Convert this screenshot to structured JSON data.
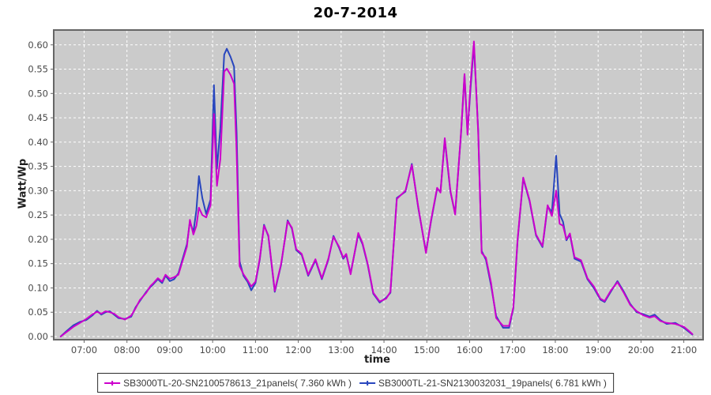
{
  "title": "20-7-2014",
  "axes": {
    "y_label": "Watt/Wp",
    "x_label": "time",
    "y_ticks": [
      "0.00",
      "0.05",
      "0.10",
      "0.15",
      "0.20",
      "0.25",
      "0.30",
      "0.35",
      "0.40",
      "0.45",
      "0.50",
      "0.55",
      "0.60"
    ],
    "x_ticks": [
      "07:00",
      "08:00",
      "09:00",
      "10:00",
      "11:00",
      "12:00",
      "13:00",
      "14:00",
      "15:00",
      "16:00",
      "17:00",
      "18:00",
      "19:00",
      "20:00",
      "21:00"
    ]
  },
  "legend": {
    "items": [
      {
        "label": "SB3000TL-20-SN2100578613_21panels( 7.360 kWh )",
        "color": "#cc00cc"
      },
      {
        "label": "SB3000TL-21-SN2130032031_19panels( 6.781 kWh )",
        "color": "#2846be"
      }
    ]
  },
  "colors": {
    "plot_bg": "#cbcbcb",
    "grid": "#ffffff",
    "frame": "#666666",
    "tick_text": "#4a4a4a",
    "series_magenta": "#cc00cc",
    "series_blue": "#2846be"
  },
  "chart_data": {
    "type": "line",
    "title": "20-7-2014",
    "xlabel": "time",
    "ylabel": "Watt/Wp",
    "x_axis_unit": "hour of day",
    "xlim_hours": [
      6.29,
      21.45
    ],
    "ylim": [
      0,
      0.62
    ],
    "grid": "white dashed gridlines on gray plot background, hourly x-grid, 0.05 y-grid",
    "legend_position": "bottom-center boxed",
    "x_hours": [
      6.45,
      6.6,
      6.75,
      6.9,
      7.05,
      7.2,
      7.3,
      7.4,
      7.5,
      7.6,
      7.7,
      7.8,
      7.95,
      8.1,
      8.2,
      8.3,
      8.45,
      8.55,
      8.62,
      8.72,
      8.82,
      8.9,
      9.0,
      9.1,
      9.2,
      9.3,
      9.4,
      9.47,
      9.55,
      9.62,
      9.68,
      9.76,
      9.85,
      9.95,
      10.03,
      10.1,
      10.18,
      10.27,
      10.33,
      10.42,
      10.5,
      10.56,
      10.63,
      10.72,
      10.82,
      10.9,
      11.0,
      11.1,
      11.2,
      11.3,
      11.45,
      11.6,
      11.75,
      11.85,
      11.95,
      12.08,
      12.23,
      12.4,
      12.55,
      12.7,
      12.82,
      12.95,
      13.05,
      13.12,
      13.22,
      13.4,
      13.5,
      13.62,
      13.75,
      13.9,
      14.05,
      14.15,
      14.3,
      14.5,
      14.65,
      14.8,
      14.98,
      15.1,
      15.24,
      15.32,
      15.42,
      15.55,
      15.66,
      15.8,
      15.88,
      15.95,
      16.02,
      16.1,
      16.2,
      16.28,
      16.38,
      16.5,
      16.62,
      16.78,
      16.92,
      17.02,
      17.12,
      17.25,
      17.4,
      17.55,
      17.7,
      17.82,
      17.92,
      18.02,
      18.1,
      18.18,
      18.26,
      18.34,
      18.45,
      18.6,
      18.75,
      18.9,
      19.05,
      19.15,
      19.3,
      19.45,
      19.6,
      19.75,
      19.9,
      20.05,
      20.2,
      20.32,
      20.45,
      20.6,
      20.8,
      21.0,
      21.1,
      21.2
    ],
    "series": [
      {
        "name": "SB3000TL-20-SN2100578613_21panels( 7.360 kWh )",
        "color": "#cc00cc",
        "energy_kwh": "7.360",
        "values": [
          0.0,
          0.01,
          0.02,
          0.028,
          0.036,
          0.046,
          0.051,
          0.047,
          0.052,
          0.05,
          0.047,
          0.04,
          0.035,
          0.043,
          0.058,
          0.075,
          0.09,
          0.104,
          0.11,
          0.12,
          0.113,
          0.127,
          0.119,
          0.122,
          0.127,
          0.156,
          0.185,
          0.24,
          0.21,
          0.228,
          0.265,
          0.25,
          0.245,
          0.27,
          0.458,
          0.31,
          0.365,
          0.545,
          0.551,
          0.538,
          0.52,
          0.38,
          0.145,
          0.128,
          0.115,
          0.103,
          0.113,
          0.16,
          0.228,
          0.208,
          0.094,
          0.15,
          0.237,
          0.224,
          0.18,
          0.17,
          0.127,
          0.159,
          0.12,
          0.16,
          0.205,
          0.185,
          0.162,
          0.17,
          0.128,
          0.213,
          0.192,
          0.15,
          0.09,
          0.072,
          0.078,
          0.092,
          0.283,
          0.3,
          0.353,
          0.267,
          0.172,
          0.24,
          0.306,
          0.296,
          0.408,
          0.3,
          0.251,
          0.42,
          0.54,
          0.415,
          0.52,
          0.607,
          0.42,
          0.172,
          0.162,
          0.11,
          0.038,
          0.022,
          0.022,
          0.06,
          0.2,
          0.327,
          0.28,
          0.21,
          0.186,
          0.27,
          0.248,
          0.3,
          0.232,
          0.228,
          0.2,
          0.212,
          0.163,
          0.157,
          0.12,
          0.103,
          0.078,
          0.073,
          0.095,
          0.112,
          0.09,
          0.065,
          0.052,
          0.044,
          0.039,
          0.042,
          0.032,
          0.028,
          0.026,
          0.02,
          0.013,
          0.005
        ]
      },
      {
        "name": "SB3000TL-21-SN2130032031_19panels( 6.781 kWh )",
        "color": "#2846be",
        "energy_kwh": "6.781",
        "values": [
          0.0,
          0.012,
          0.023,
          0.03,
          0.034,
          0.044,
          0.053,
          0.045,
          0.05,
          0.052,
          0.045,
          0.038,
          0.036,
          0.041,
          0.06,
          0.073,
          0.092,
          0.102,
          0.108,
          0.118,
          0.11,
          0.125,
          0.114,
          0.118,
          0.13,
          0.16,
          0.19,
          0.236,
          0.215,
          0.26,
          0.33,
          0.285,
          0.252,
          0.282,
          0.517,
          0.345,
          0.428,
          0.58,
          0.592,
          0.575,
          0.555,
          0.42,
          0.155,
          0.125,
          0.112,
          0.095,
          0.11,
          0.158,
          0.23,
          0.206,
          0.092,
          0.148,
          0.239,
          0.222,
          0.178,
          0.168,
          0.125,
          0.157,
          0.118,
          0.158,
          0.207,
          0.183,
          0.16,
          0.168,
          0.13,
          0.21,
          0.19,
          0.148,
          0.088,
          0.07,
          0.08,
          0.09,
          0.285,
          0.298,
          0.355,
          0.265,
          0.174,
          0.238,
          0.304,
          0.298,
          0.405,
          0.298,
          0.253,
          0.418,
          0.537,
          0.418,
          0.51,
          0.6,
          0.425,
          0.176,
          0.158,
          0.105,
          0.042,
          0.018,
          0.018,
          0.058,
          0.198,
          0.325,
          0.278,
          0.208,
          0.184,
          0.268,
          0.256,
          0.372,
          0.252,
          0.236,
          0.198,
          0.21,
          0.16,
          0.154,
          0.118,
          0.1,
          0.076,
          0.071,
          0.093,
          0.114,
          0.092,
          0.067,
          0.05,
          0.046,
          0.041,
          0.045,
          0.034,
          0.026,
          0.028,
          0.018,
          0.011,
          0.004
        ]
      }
    ]
  }
}
